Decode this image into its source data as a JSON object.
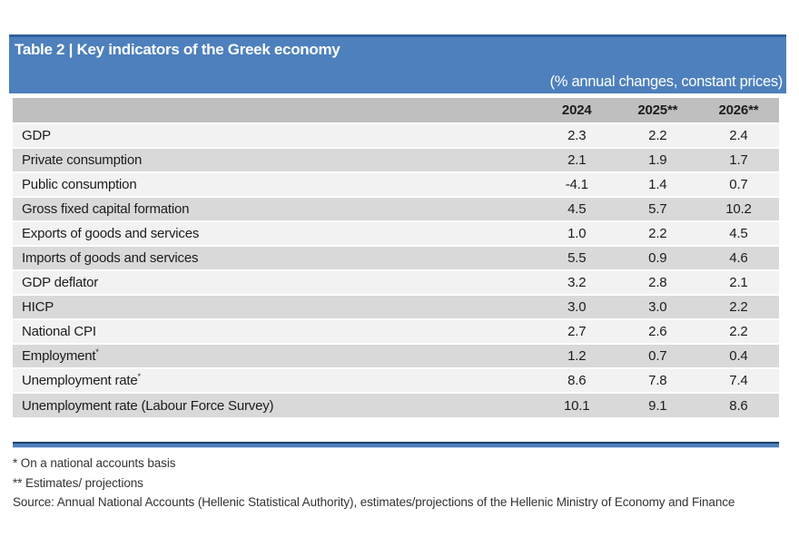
{
  "table": {
    "title": "Table 2 | Key indicators of the Greek economy",
    "subtitle": "(% annual changes, constant prices)",
    "columns": [
      "",
      "2024",
      "2025**",
      "2026**"
    ],
    "rows": [
      {
        "label": "GDP",
        "sup": "",
        "values": [
          "2.3",
          "2.2",
          "2.4"
        ]
      },
      {
        "label": "Private consumption",
        "sup": "",
        "values": [
          "2.1",
          "1.9",
          "1.7"
        ]
      },
      {
        "label": "Public consumption",
        "sup": "",
        "values": [
          "-4.1",
          "1.4",
          "0.7"
        ]
      },
      {
        "label": "Gross fixed capital formation",
        "sup": "",
        "values": [
          "4.5",
          "5.7",
          "10.2"
        ]
      },
      {
        "label": "Exports of goods and services",
        "sup": "",
        "values": [
          "1.0",
          "2.2",
          "4.5"
        ]
      },
      {
        "label": "Imports of goods and services",
        "sup": "",
        "values": [
          "5.5",
          "0.9",
          "4.6"
        ]
      },
      {
        "label": "GDP deflator",
        "sup": "",
        "values": [
          "3.2",
          "2.8",
          "2.1"
        ]
      },
      {
        "label": "HICP",
        "sup": "",
        "values": [
          "3.0",
          "3.0",
          "2.2"
        ]
      },
      {
        "label": "National CPI",
        "sup": "",
        "values": [
          "2.7",
          "2.6",
          "2.2"
        ]
      },
      {
        "label": "Employment",
        "sup": "*",
        "values": [
          "1.2",
          "0.7",
          "0.4"
        ]
      },
      {
        "label": "Unemployment rate",
        "sup": "*",
        "values": [
          "8.6",
          "7.8",
          "7.4"
        ]
      },
      {
        "label": "Unemployment rate (Labour Force Survey)",
        "sup": "",
        "values": [
          "10.1",
          "9.1",
          "8.6"
        ]
      }
    ],
    "footnotes": [
      "* On a national accounts basis",
      "** Estimates/ projections",
      "Source: Annual National Accounts (Hellenic Statistical Authority), estimates/projections of the Hellenic Ministry of Economy and Finance"
    ]
  },
  "colors": {
    "banner_blue": "#4d80bc",
    "banner_top_edge": "#31619b",
    "header_gray": "#bfbfbf",
    "row_light": "#f2f2f2",
    "row_dark": "#d9d9d9",
    "bottom_rule_navy": "#1f3f66",
    "text": "#1c1c1c",
    "banner_text": "#ffffff"
  },
  "chart_data": {
    "type": "table",
    "title": "Table 2 | Key indicators of the Greek economy",
    "subtitle": "(% annual changes, constant prices)",
    "columns": [
      "2024",
      "2025**",
      "2026**"
    ],
    "rows": [
      {
        "indicator": "GDP",
        "values": [
          2.3,
          2.2,
          2.4
        ]
      },
      {
        "indicator": "Private consumption",
        "values": [
          2.1,
          1.9,
          1.7
        ]
      },
      {
        "indicator": "Public consumption",
        "values": [
          -4.1,
          1.4,
          0.7
        ]
      },
      {
        "indicator": "Gross fixed capital formation",
        "values": [
          4.5,
          5.7,
          10.2
        ]
      },
      {
        "indicator": "Exports of goods and services",
        "values": [
          1.0,
          2.2,
          4.5
        ]
      },
      {
        "indicator": "Imports of goods and services",
        "values": [
          5.5,
          0.9,
          4.6
        ]
      },
      {
        "indicator": "GDP deflator",
        "values": [
          3.2,
          2.8,
          2.1
        ]
      },
      {
        "indicator": "HICP",
        "values": [
          3.0,
          3.0,
          2.2
        ]
      },
      {
        "indicator": "National CPI",
        "values": [
          2.7,
          2.6,
          2.2
        ]
      },
      {
        "indicator": "Employment*",
        "values": [
          1.2,
          0.7,
          0.4
        ]
      },
      {
        "indicator": "Unemployment rate*",
        "values": [
          8.6,
          7.8,
          7.4
        ]
      },
      {
        "indicator": "Unemployment rate (Labour Force Survey)",
        "values": [
          10.1,
          9.1,
          8.6
        ]
      }
    ],
    "notes": [
      "* On a national accounts basis",
      "** Estimates/ projections",
      "Source: Annual National Accounts (Hellenic Statistical Authority), estimates/projections of the Hellenic Ministry of Economy and Finance"
    ]
  }
}
